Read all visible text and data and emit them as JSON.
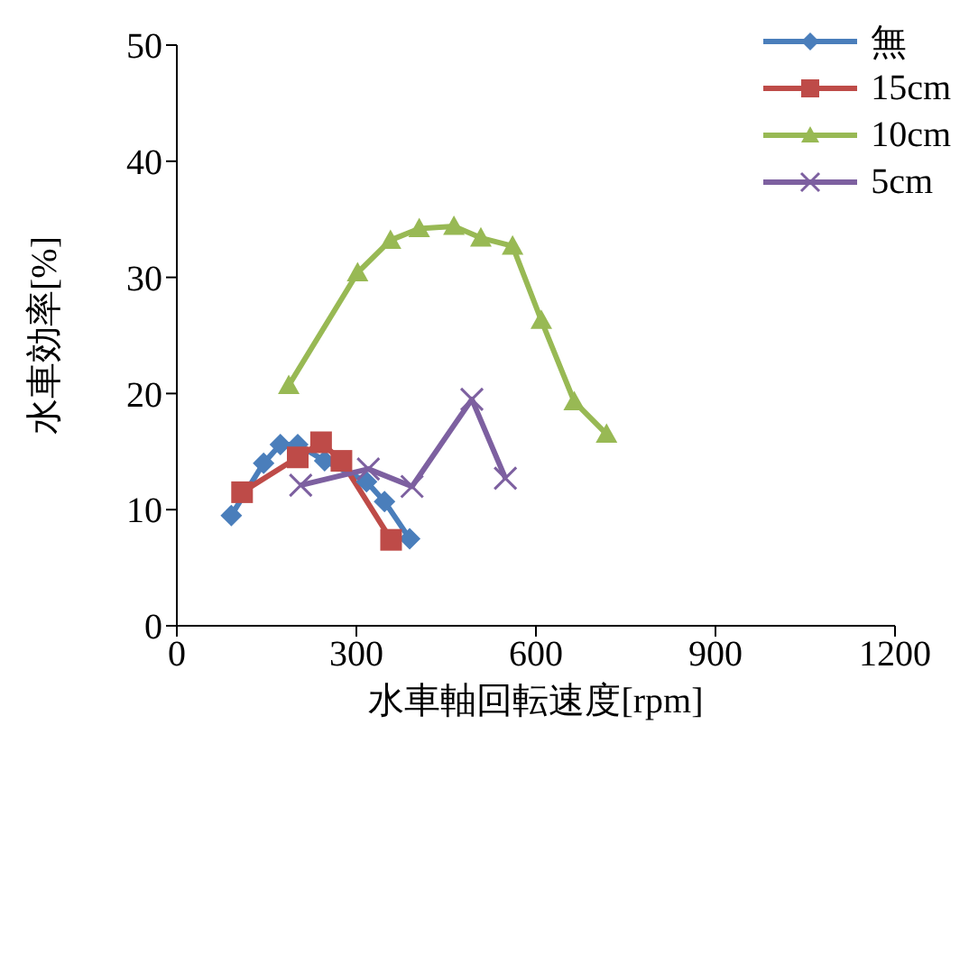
{
  "chart_data": {
    "type": "line",
    "xlabel": "水車軸回転速度[rpm]",
    "ylabel": "水車効率[%]",
    "xlim": [
      0,
      1200
    ],
    "xticks": [
      0,
      300,
      600,
      900,
      1200
    ],
    "ylim": [
      0,
      50
    ],
    "yticks": [
      0,
      10,
      20,
      30,
      40,
      50
    ],
    "grid": false,
    "legend": "top right",
    "line_style": "solid",
    "series": [
      {
        "name": "無",
        "color": "#4a7ebb",
        "marker": "diamond",
        "x": [
          91,
          145,
          173,
          202,
          247,
          317,
          347,
          389
        ],
        "values": [
          9.5,
          14.0,
          15.6,
          15.6,
          14.2,
          12.4,
          10.7,
          7.5
        ]
      },
      {
        "name": "15cm",
        "color": "#be4b48",
        "marker": "square",
        "x": [
          109,
          202,
          241,
          275,
          358
        ],
        "values": [
          11.5,
          14.5,
          15.8,
          14.2,
          7.4
        ]
      },
      {
        "name": "10cm",
        "color": "#98b954",
        "marker": "triangle",
        "x": [
          187,
          302,
          357,
          405,
          463,
          508,
          561,
          609,
          664,
          718
        ],
        "values": [
          20.7,
          30.4,
          33.2,
          34.2,
          34.4,
          33.4,
          32.7,
          26.3,
          19.3,
          16.5
        ]
      },
      {
        "name": "5cm",
        "color": "#7d60a0",
        "marker": "cross",
        "x": [
          207,
          320,
          393,
          493,
          549
        ],
        "values": [
          12.1,
          13.5,
          12.0,
          19.5,
          12.7
        ]
      }
    ]
  }
}
